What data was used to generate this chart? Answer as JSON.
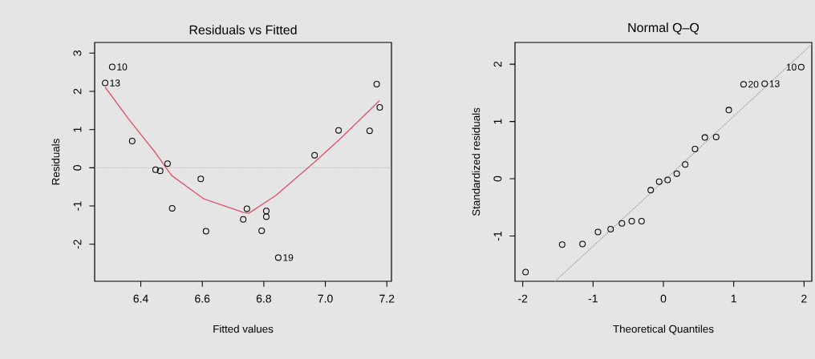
{
  "chart_data": [
    {
      "type": "scatter",
      "title": "Residuals vs Fitted",
      "xlabel": "Fitted values",
      "ylabel": "Residuals",
      "xlim": [
        6.25,
        7.215
      ],
      "ylim": [
        -2.97,
        3.28
      ],
      "xticks": [
        6.4,
        6.6,
        6.8,
        {
          "value": 7,
          "label": "7.0"
        },
        7.2
      ],
      "yticks": [
        -2,
        -1,
        0,
        1,
        2,
        3
      ],
      "grid": false,
      "series": [
        {
          "color": "#000000",
          "marker": "circle",
          "x": [
            6.284,
            6.307,
            6.372,
            6.448,
            6.463,
            6.487,
            6.502,
            6.595,
            6.612,
            6.733,
            6.745,
            6.793,
            6.808,
            6.808,
            6.847,
            6.965,
            7.043,
            7.144,
            7.167,
            7.177
          ],
          "values": [
            2.22,
            2.64,
            0.7,
            -0.05,
            -0.08,
            0.11,
            -1.06,
            -0.29,
            -1.66,
            -1.35,
            -1.07,
            -1.65,
            -1.13,
            -1.28,
            -2.35,
            0.33,
            0.98,
            0.97,
            2.19,
            1.58
          ]
        },
        {
          "type": "line",
          "color": "#df536b",
          "line_style": "solid",
          "x": [
            6.284,
            6.361,
            6.448,
            6.5,
            6.604,
            6.734,
            6.751,
            6.838,
            6.968,
            7.055,
            7.176
          ],
          "values": [
            2.11,
            1.27,
            0.39,
            -0.2,
            -0.81,
            -1.17,
            -1.19,
            -0.73,
            0.17,
            0.81,
            1.76
          ]
        }
      ],
      "ref_lines": [
        {
          "axis": "y",
          "value": 0,
          "color": "#b3b3b3",
          "line_style": "dotted"
        }
      ],
      "annotations": [
        {
          "text": "10",
          "x": 6.307,
          "y": 2.64
        },
        {
          "text": "13",
          "x": 6.284,
          "y": 2.22
        },
        {
          "text": "19",
          "x": 6.847,
          "y": -2.35
        }
      ]
    },
    {
      "type": "scatter",
      "title": "Normal Q–Q",
      "xlabel": "Theoretical Quantiles",
      "ylabel": "Standardized residuals",
      "xlim": [
        -2.11,
        2.11
      ],
      "ylim": [
        -1.79,
        2.38
      ],
      "xticks": [
        -2,
        -1,
        0,
        1,
        2
      ],
      "yticks": [
        -1,
        0,
        1,
        2
      ],
      "grid": false,
      "series": [
        {
          "color": "#000000",
          "marker": "circle",
          "x": [
            -1.96,
            -1.44,
            -1.15,
            -0.93,
            -0.75,
            -0.59,
            -0.45,
            -0.31,
            -0.18,
            -0.06,
            0.06,
            0.19,
            0.31,
            0.45,
            0.59,
            0.75,
            0.93,
            1.14,
            1.44,
            1.96
          ],
          "values": [
            -1.63,
            -1.15,
            -1.14,
            -0.93,
            -0.88,
            -0.78,
            -0.74,
            -0.74,
            -0.2,
            -0.05,
            -0.02,
            0.09,
            0.25,
            0.52,
            0.72,
            0.73,
            1.2,
            1.65,
            1.66,
            1.95
          ]
        },
        {
          "type": "line",
          "color": "#9e9e9e",
          "line_style": "dotted",
          "x": [
            -1.54,
            2.11
          ],
          "values": [
            -1.79,
            2.35
          ]
        }
      ],
      "annotations": [
        {
          "text": "10",
          "x": 1.96,
          "y": 1.95
        },
        {
          "text": "20",
          "x": 1.14,
          "y": 1.65
        },
        {
          "text": "13",
          "x": 1.44,
          "y": 1.66
        }
      ]
    }
  ]
}
